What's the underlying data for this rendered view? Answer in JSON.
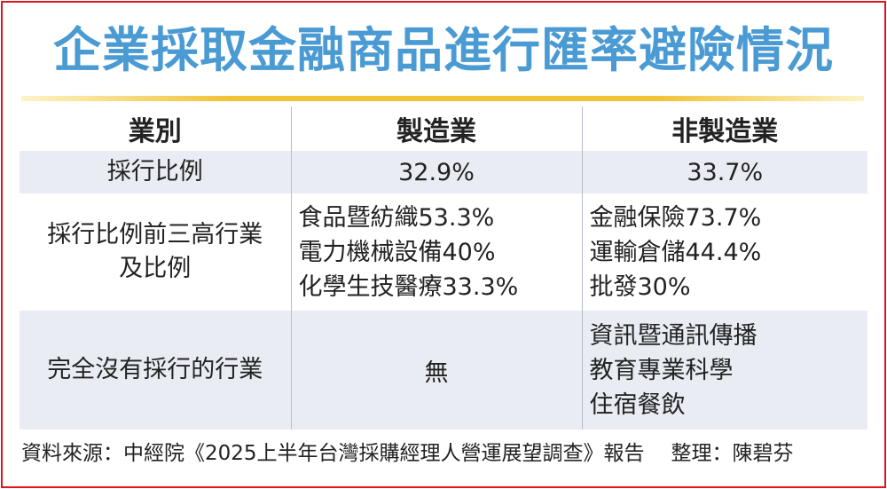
{
  "title": "企業採取金融商品進行匯率避險情況",
  "table": {
    "headers": [
      "業別",
      "製造業",
      "非製造業"
    ],
    "rows": [
      {
        "label_lines": [
          "採行比例"
        ],
        "manufacturing": [
          "32.9%"
        ],
        "non_manufacturing": [
          "33.7%"
        ]
      },
      {
        "label_lines": [
          "採行比例前三高行業",
          "及比例"
        ],
        "manufacturing": [
          "食品暨紡織53.3%",
          "電力機械設備40%",
          "化學生技醫療33.3%"
        ],
        "non_manufacturing": [
          "金融保險73.7%",
          "運輸倉儲44.4%",
          "批發30%"
        ]
      },
      {
        "label_lines": [
          "完全沒有採行的行業"
        ],
        "manufacturing": [
          "無"
        ],
        "non_manufacturing": [
          "資訊暨通訊傳播",
          "教育專業科學",
          "住宿餐飲"
        ]
      }
    ]
  },
  "footer": {
    "source": "資料來源：中經院《2025上半年台灣採購經理人營運展望調查》報告",
    "editor": "整理：陳碧芬"
  },
  "colors": {
    "title": "#4a9ad4",
    "frame": "#e0161e",
    "rule": "#f1c232",
    "row_shade": "#e9ecf3"
  }
}
